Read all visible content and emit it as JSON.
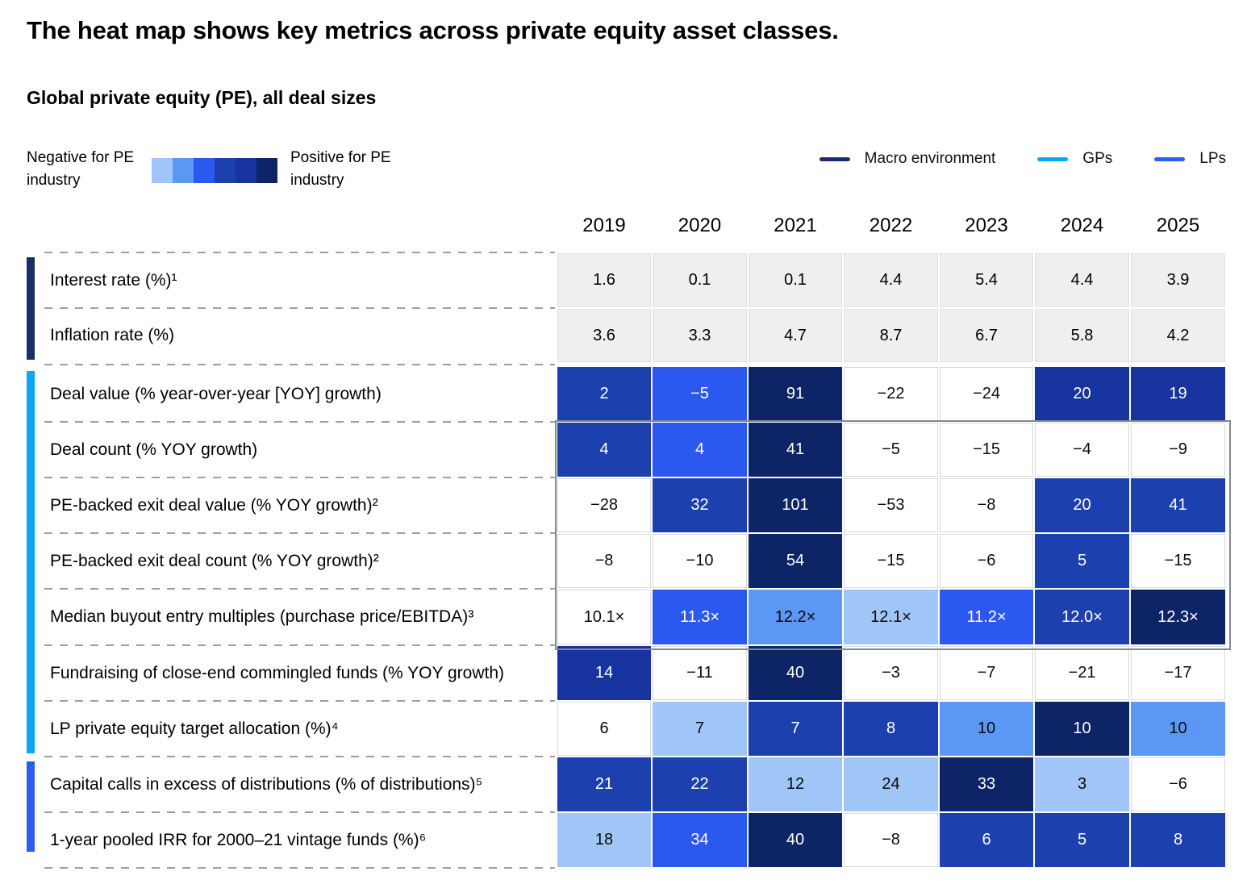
{
  "chart_data": {
    "type": "heatmap",
    "title": "The heat map shows key metrics across private equity asset classes.",
    "subtitle": "Global private equity (PE), all deal sizes",
    "scale_legend": {
      "negative_label": "Negative for PE industry",
      "positive_label": "Positive for PE industry",
      "palette": [
        "#A0C5F7",
        "#5B97F5",
        "#2B59F0",
        "#1C41AE",
        "#16339E",
        "#0D2467"
      ],
      "neutral_color": "#EFEFEF",
      "white_color": "#FFFFFF"
    },
    "groups": [
      {
        "name": "Macro environment",
        "color": "#1B2C6B"
      },
      {
        "name": "GPs",
        "color": "#06A9F1"
      },
      {
        "name": "LPs",
        "color": "#2C5CF6"
      }
    ],
    "columns": [
      "2019",
      "2020",
      "2021",
      "2022",
      "2023",
      "2024",
      "2025"
    ],
    "rows": [
      {
        "label": "Interest rate (%)¹",
        "group": "Macro environment",
        "kind": "neutral",
        "values": [
          1.6,
          0.1,
          0.1,
          4.4,
          5.4,
          4.4,
          3.9
        ],
        "display": [
          "1.6",
          "0.1",
          "0.1",
          "4.4",
          "5.4",
          "4.4",
          "3.9"
        ],
        "shades": [
          -1,
          -1,
          -1,
          -1,
          -1,
          -1,
          -1
        ]
      },
      {
        "label": "Inflation rate (%)",
        "group": "Macro environment",
        "kind": "neutral",
        "values": [
          3.6,
          3.3,
          4.7,
          8.7,
          6.7,
          5.8,
          4.2
        ],
        "display": [
          "3.6",
          "3.3",
          "4.7",
          "8.7",
          "6.7",
          "5.8",
          "4.2"
        ],
        "shades": [
          -1,
          -1,
          -1,
          -1,
          -1,
          -1,
          -1
        ]
      },
      {
        "label": "Deal value (% year-over-year [YOY] growth)",
        "group": "GPs",
        "kind": "heat",
        "values": [
          2,
          -5,
          91,
          -22,
          -24,
          20,
          19
        ],
        "display": [
          "2",
          "−5",
          "91",
          "−22",
          "−24",
          "20",
          "19"
        ],
        "shades": [
          4,
          3,
          6,
          0,
          0,
          5,
          5
        ]
      },
      {
        "label": "Deal count (% YOY growth)",
        "group": "GPs",
        "kind": "heat",
        "values": [
          4,
          4,
          41,
          -5,
          -15,
          -4,
          -9
        ],
        "display": [
          "4",
          "4",
          "41",
          "−5",
          "−15",
          "−4",
          "−9"
        ],
        "shades": [
          4,
          3,
          6,
          0,
          0,
          0,
          0
        ]
      },
      {
        "label": "PE-backed exit deal value (% YOY growth)²",
        "group": "GPs",
        "kind": "heat",
        "values": [
          -28,
          32,
          101,
          -53,
          -8,
          20,
          41
        ],
        "display": [
          "−28",
          "32",
          "101",
          "−53",
          "−8",
          "20",
          "41"
        ],
        "shades": [
          0,
          4,
          6,
          0,
          0,
          4,
          4
        ]
      },
      {
        "label": "PE-backed exit deal count (% YOY growth)²",
        "group": "GPs",
        "kind": "heat",
        "values": [
          -8,
          -10,
          54,
          -15,
          -6,
          5,
          -15
        ],
        "display": [
          "−8",
          "−10",
          "54",
          "−15",
          "−6",
          "5",
          "−15"
        ],
        "shades": [
          0,
          0,
          6,
          0,
          0,
          4,
          0
        ]
      },
      {
        "label": "Median buyout entry multiples (purchase price/EBITDA)³",
        "group": "GPs",
        "kind": "heat",
        "values": [
          10.1,
          11.3,
          12.2,
          12.1,
          11.2,
          12.0,
          12.3
        ],
        "display": [
          "10.1×",
          "11.3×",
          "12.2×",
          "12.1×",
          "11.2×",
          "12.0×",
          "12.3×"
        ],
        "shades": [
          0,
          3,
          2,
          1,
          3,
          4,
          6
        ]
      },
      {
        "label": "Fundraising of close-end commingled funds (% YOY growth)",
        "group": "GPs",
        "kind": "heat",
        "values": [
          14,
          -11,
          40,
          -3,
          -7,
          -21,
          -17
        ],
        "display": [
          "14",
          "−11",
          "40",
          "−3",
          "−7",
          "−21",
          "−17"
        ],
        "shades": [
          5,
          0,
          6,
          0,
          0,
          0,
          0
        ]
      },
      {
        "label": "LP private equity target allocation (%)⁴",
        "group": "GPs",
        "kind": "heat",
        "values": [
          6,
          7,
          7,
          8,
          10,
          10,
          10
        ],
        "display": [
          "6",
          "7",
          "7",
          "8",
          "10",
          "10",
          "10"
        ],
        "shades": [
          0,
          1,
          4,
          4,
          2,
          6,
          2
        ]
      },
      {
        "label": "Capital calls in excess of distributions (% of distributions)⁵",
        "group": "LPs",
        "kind": "heat",
        "values": [
          21,
          22,
          12,
          24,
          33,
          3,
          -6
        ],
        "display": [
          "21",
          "22",
          "12",
          "24",
          "33",
          "3",
          "−6"
        ],
        "shades": [
          4,
          4,
          1,
          1,
          6,
          1,
          0
        ]
      },
      {
        "label": "1-year pooled IRR for 2000–21 vintage funds (%)⁶",
        "group": "LPs",
        "kind": "heat",
        "values": [
          18,
          34,
          40,
          -8,
          6,
          5,
          8
        ],
        "display": [
          "18",
          "34",
          "40",
          "−8",
          "6",
          "5",
          "8"
        ],
        "shades": [
          1,
          3,
          6,
          0,
          4,
          4,
          4
        ]
      }
    ],
    "highlight_box": {
      "first_row_index": 3,
      "last_row_index": 6,
      "note": "gray outline around Deal count through Median buyout entry multiples rows"
    },
    "layout_hints": {
      "legend_position": "top",
      "grid": "dashed row separators in label column"
    }
  }
}
